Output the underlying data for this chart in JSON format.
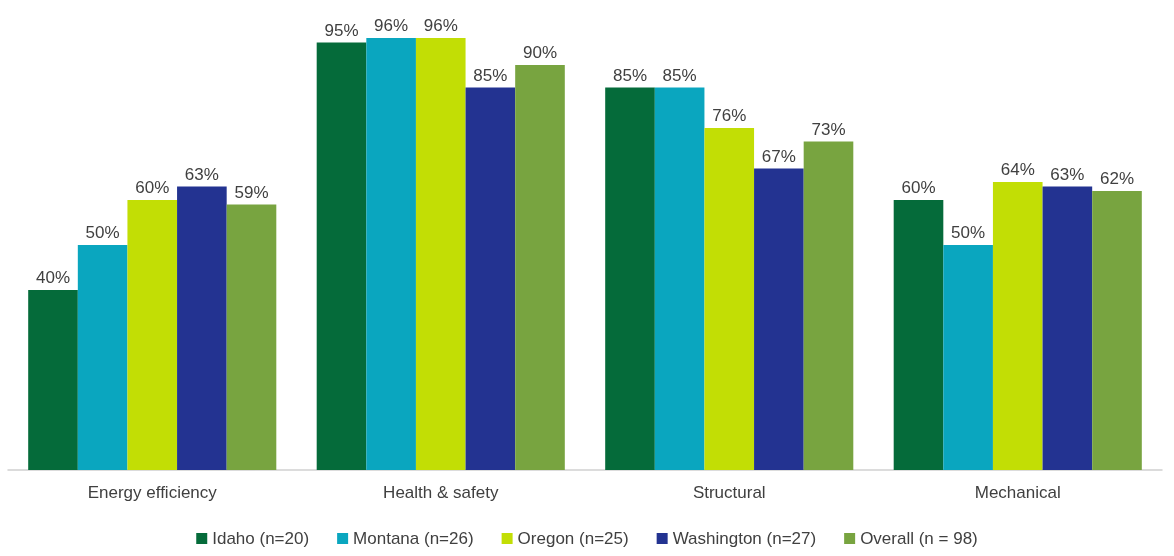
{
  "chart_data": {
    "type": "bar",
    "categories": [
      "Energy efficiency",
      "Health & safety",
      "Structural",
      "Mechanical"
    ],
    "series": [
      {
        "name": "Idaho (n=20)",
        "color": "#056b3a",
        "values": [
          40,
          95,
          85,
          60
        ],
        "value_labels": [
          "40%",
          "95%",
          "85%",
          "60%"
        ]
      },
      {
        "name": "Montana (n=26)",
        "color": "#0aa6bf",
        "values": [
          50,
          96,
          85,
          50
        ],
        "value_labels": [
          "50%",
          "96%",
          "85%",
          "50%"
        ]
      },
      {
        "name": "Oregon (n=25)",
        "color": "#c2de05",
        "values": [
          60,
          96,
          76,
          64
        ],
        "value_labels": [
          "60%",
          "96%",
          "76%",
          "64%"
        ]
      },
      {
        "name": "Washington (n=27)",
        "color": "#233391",
        "values": [
          63,
          85,
          67,
          63
        ],
        "value_labels": [
          "63%",
          "85%",
          "67%",
          "63%"
        ]
      },
      {
        "name": "Overall (n = 98)",
        "color": "#78a440",
        "values": [
          59,
          90,
          73,
          62
        ],
        "value_labels": [
          "59%",
          "90%",
          "73%",
          "62%"
        ]
      }
    ],
    "legend": "bottom"
  }
}
